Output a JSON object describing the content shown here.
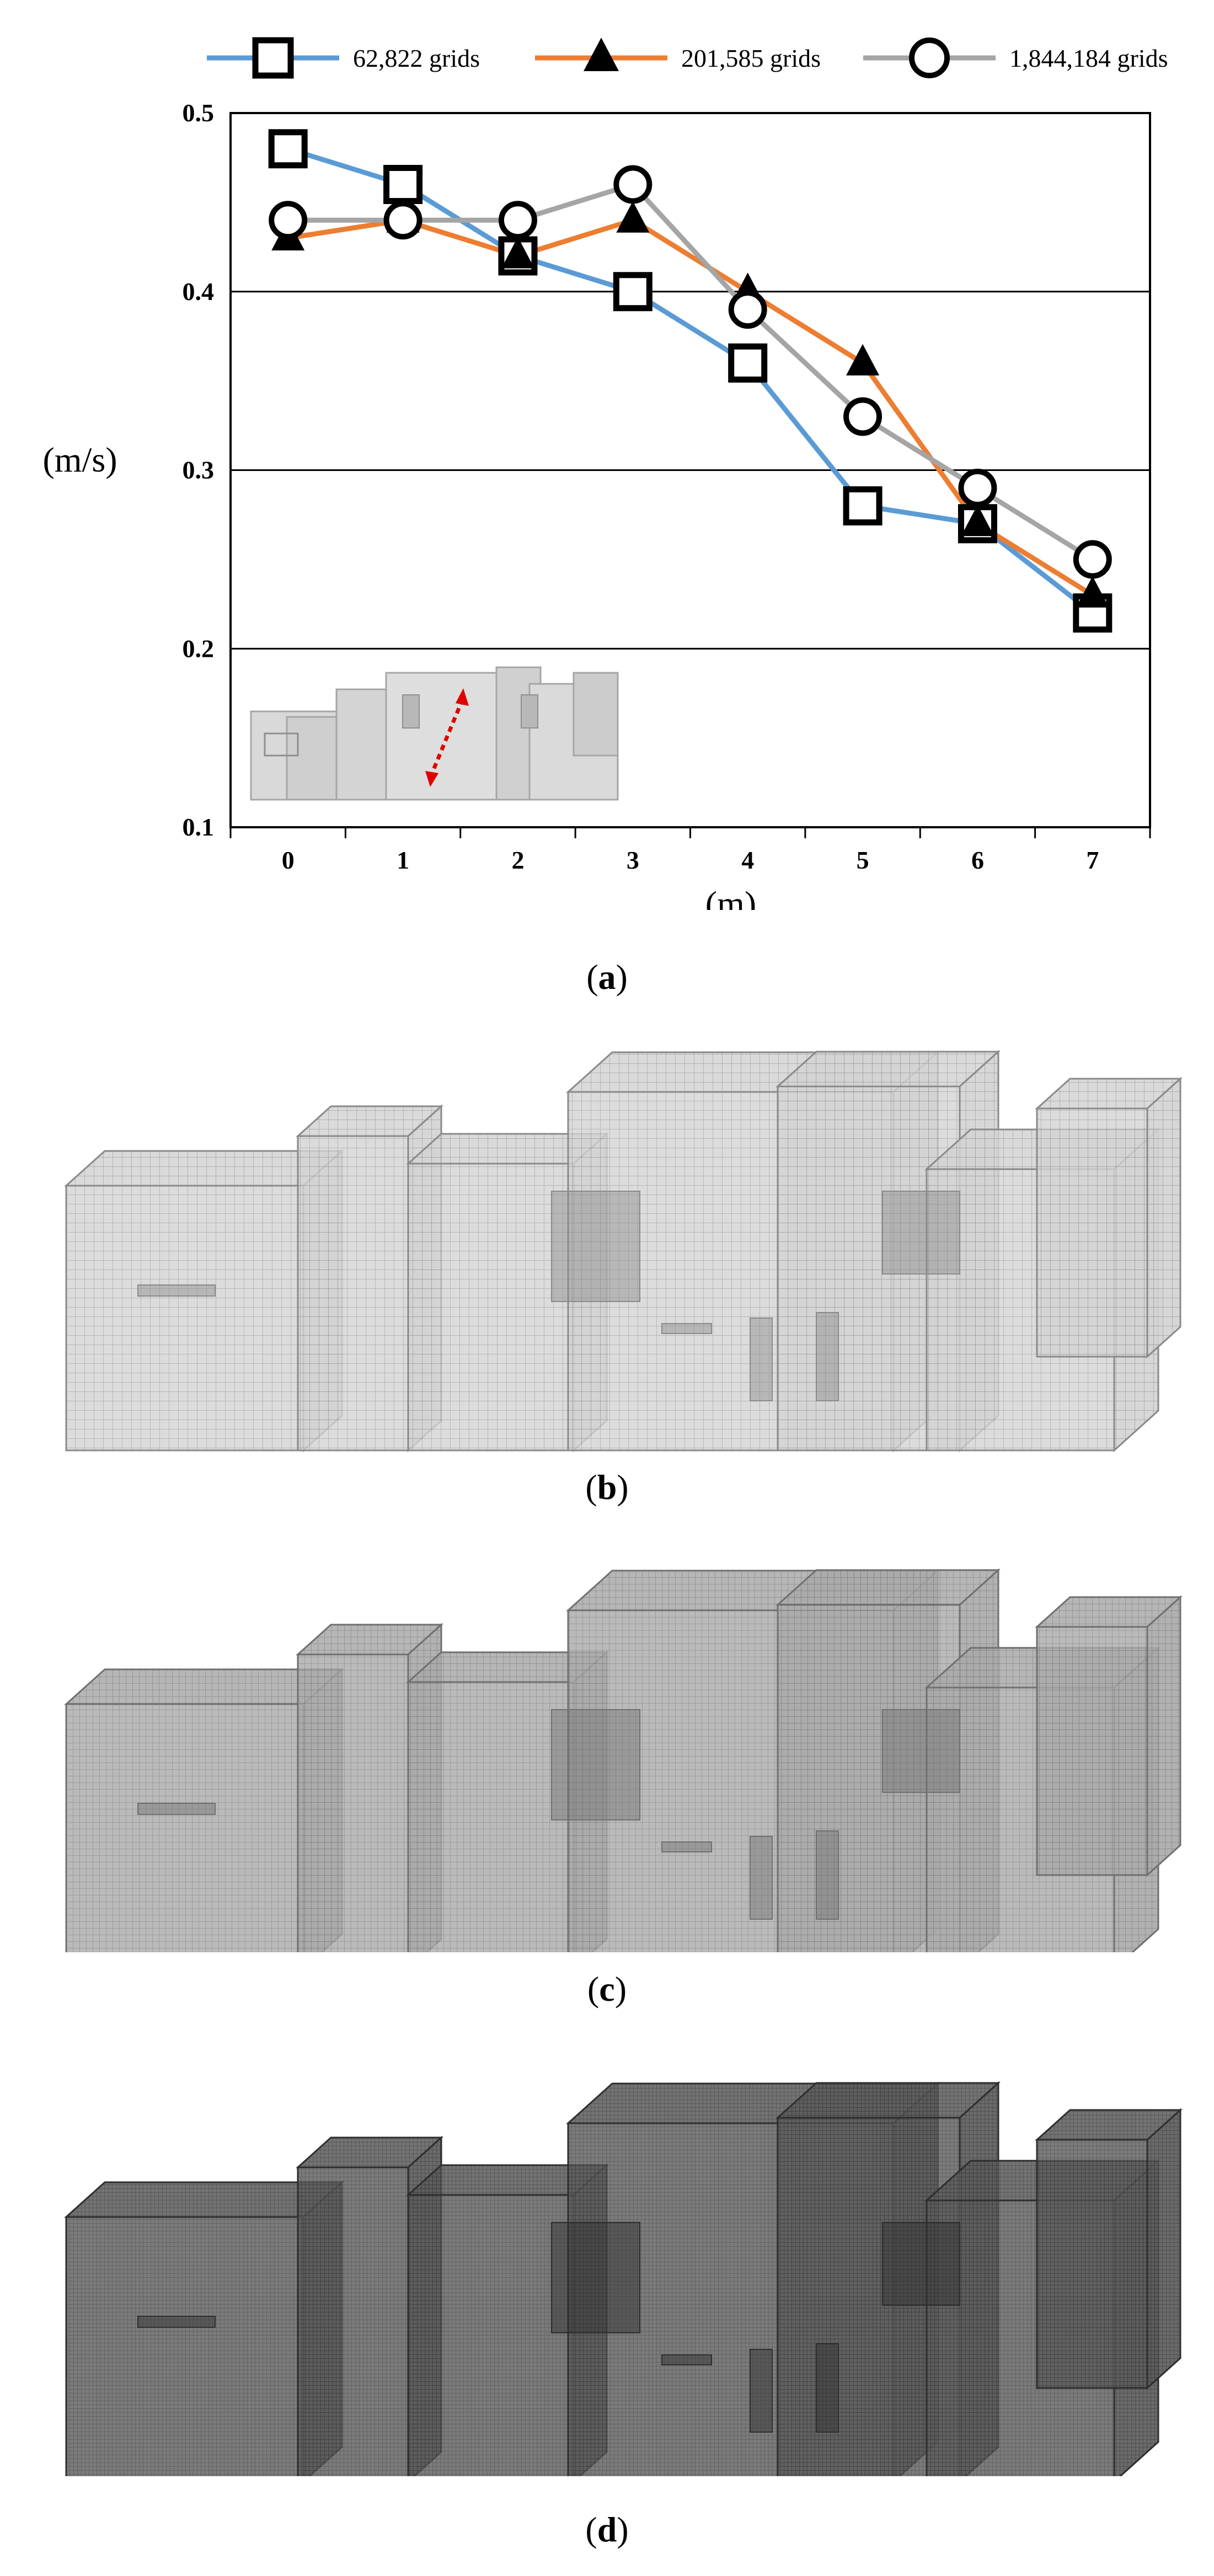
{
  "chart_data": {
    "type": "line",
    "x": [
      0,
      1,
      2,
      3,
      4,
      5,
      6,
      7
    ],
    "series": [
      {
        "name": "62,822 grids",
        "marker": "square",
        "color": "#5b9bd5",
        "values": [
          0.48,
          0.46,
          0.42,
          0.4,
          0.36,
          0.28,
          0.27,
          0.22
        ]
      },
      {
        "name": "201,585 grids",
        "marker": "triangle",
        "color": "#ed7d31",
        "values": [
          0.43,
          0.44,
          0.42,
          0.44,
          0.4,
          0.36,
          0.27,
          0.23
        ]
      },
      {
        "name": "1,844,184 grids",
        "marker": "circle",
        "color": "#a5a5a5",
        "values": [
          0.44,
          0.44,
          0.44,
          0.46,
          0.39,
          0.33,
          0.29,
          0.25
        ]
      }
    ],
    "xticks": [
      "0",
      "1",
      "2",
      "3",
      "4",
      "5",
      "6",
      "7"
    ],
    "yticks": [
      "0.1",
      "0.2",
      "0.3",
      "0.4",
      "0.5"
    ],
    "xlabel": "(m)",
    "ylabel": "(m/s)",
    "ylim": [
      0.1,
      0.5
    ],
    "xlim": [
      -0.5,
      7.5
    ],
    "grid": "horizontal",
    "legend": "top"
  },
  "captions": {
    "a_open": "(",
    "a_letter": "a",
    "a_close": ")",
    "b_open": "(",
    "b_letter": "b",
    "b_close": ")",
    "c_open": "(",
    "c_letter": "c",
    "c_close": ")",
    "d_open": "(",
    "d_letter": "d",
    "d_close": ")"
  },
  "meshes": [
    {
      "panel": "b",
      "shade": "#d3d3d3",
      "line": "#8a8a8a",
      "density": 1
    },
    {
      "panel": "c",
      "shade": "#a9a9a9",
      "line": "#707070",
      "density": 2
    },
    {
      "panel": "d",
      "shade": "#5a5a5a",
      "line": "#2e2e2e",
      "density": 3
    }
  ]
}
